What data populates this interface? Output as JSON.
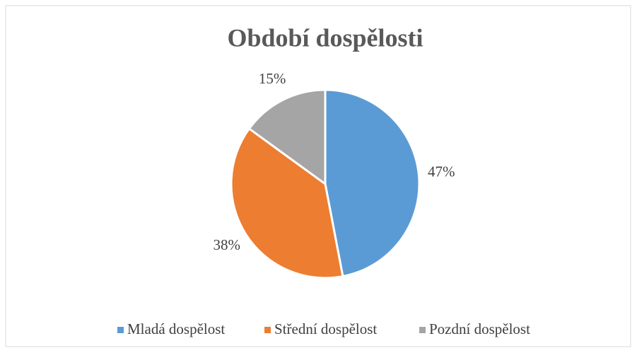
{
  "chart_data": {
    "type": "pie",
    "title": "Období dospělosti",
    "categories": [
      "Mladá dospělost",
      "Střední dospělost",
      "Pozdní dospělost"
    ],
    "values": [
      47,
      38,
      15
    ],
    "value_labels": [
      "47%",
      "38%",
      "15%"
    ],
    "colors": [
      "#5b9bd5",
      "#ed7d31",
      "#a5a5a5"
    ],
    "legend": "bottom"
  }
}
